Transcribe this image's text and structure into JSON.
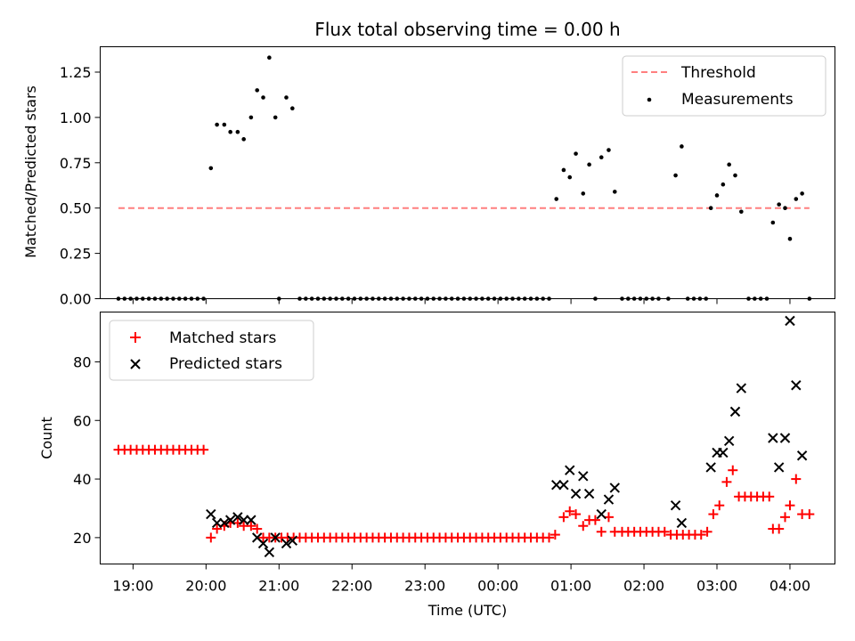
{
  "chart_data": [
    {
      "type": "scatter",
      "title": "Flux total observing time = 0.00 h",
      "xlabel": "",
      "ylabel": "Matched/Predicted stars",
      "ylim": [
        0.0,
        1.39
      ],
      "yticks": [
        0.0,
        0.25,
        0.5,
        0.75,
        1.0,
        1.25
      ],
      "ytick_labels": [
        "0.00",
        "0.25",
        "0.50",
        "0.75",
        "1.00",
        "1.25"
      ],
      "legend_position": "top-right",
      "series": [
        {
          "name": "Threshold",
          "kind": "line",
          "style": "dashed",
          "color": "#ff7f7f",
          "x": [
            "18:48",
            "04:16"
          ],
          "y": [
            0.5,
            0.5
          ]
        },
        {
          "name": "Measurements",
          "kind": "scatter",
          "color": "#000000",
          "points": [
            [
              "18:48",
              0
            ],
            [
              "18:53",
              0
            ],
            [
              "18:58",
              0
            ],
            [
              "19:03",
              0
            ],
            [
              "19:08",
              0
            ],
            [
              "19:13",
              0
            ],
            [
              "19:18",
              0
            ],
            [
              "19:23",
              0
            ],
            [
              "19:28",
              0
            ],
            [
              "19:33",
              0
            ],
            [
              "19:38",
              0
            ],
            [
              "19:43",
              0
            ],
            [
              "19:48",
              0
            ],
            [
              "19:53",
              0
            ],
            [
              "19:58",
              0
            ],
            [
              "20:04",
              0.72
            ],
            [
              "20:09",
              0.96
            ],
            [
              "20:15",
              0.96
            ],
            [
              "20:20",
              0.92
            ],
            [
              "20:26",
              0.92
            ],
            [
              "20:31",
              0.88
            ],
            [
              "20:37",
              1.0
            ],
            [
              "20:42",
              1.15
            ],
            [
              "20:47",
              1.11
            ],
            [
              "20:52",
              1.33
            ],
            [
              "20:57",
              1.0
            ],
            [
              "21:00",
              0
            ],
            [
              "21:06",
              1.11
            ],
            [
              "21:11",
              1.05
            ],
            [
              "21:17",
              0
            ],
            [
              "21:22",
              0
            ],
            [
              "21:27",
              0
            ],
            [
              "21:32",
              0
            ],
            [
              "21:37",
              0
            ],
            [
              "21:42",
              0
            ],
            [
              "21:47",
              0
            ],
            [
              "21:52",
              0
            ],
            [
              "21:57",
              0
            ],
            [
              "22:02",
              0
            ],
            [
              "22:07",
              0
            ],
            [
              "22:12",
              0
            ],
            [
              "22:17",
              0
            ],
            [
              "22:22",
              0
            ],
            [
              "22:27",
              0
            ],
            [
              "22:32",
              0
            ],
            [
              "22:37",
              0
            ],
            [
              "22:42",
              0
            ],
            [
              "22:47",
              0
            ],
            [
              "22:52",
              0
            ],
            [
              "22:57",
              0
            ],
            [
              "23:02",
              0
            ],
            [
              "23:07",
              0
            ],
            [
              "23:12",
              0
            ],
            [
              "23:17",
              0
            ],
            [
              "23:22",
              0
            ],
            [
              "23:27",
              0
            ],
            [
              "23:32",
              0
            ],
            [
              "23:37",
              0
            ],
            [
              "23:42",
              0
            ],
            [
              "23:47",
              0
            ],
            [
              "23:52",
              0
            ],
            [
              "23:57",
              0
            ],
            [
              "00:02",
              0
            ],
            [
              "00:07",
              0
            ],
            [
              "00:12",
              0
            ],
            [
              "00:17",
              0
            ],
            [
              "00:22",
              0
            ],
            [
              "00:27",
              0
            ],
            [
              "00:32",
              0
            ],
            [
              "00:37",
              0
            ],
            [
              "00:42",
              0
            ],
            [
              "00:48",
              0.55
            ],
            [
              "00:54",
              0.71
            ],
            [
              "00:59",
              0.67
            ],
            [
              "01:04",
              0.8
            ],
            [
              "01:10",
              0.58
            ],
            [
              "01:15",
              0.74
            ],
            [
              "01:25",
              0.78
            ],
            [
              "01:31",
              0.82
            ],
            [
              "01:36",
              0.59
            ],
            [
              "01:20",
              0
            ],
            [
              "01:42",
              0
            ],
            [
              "01:47",
              0
            ],
            [
              "01:52",
              0
            ],
            [
              "01:57",
              0
            ],
            [
              "02:02",
              0
            ],
            [
              "02:07",
              0
            ],
            [
              "02:12",
              0
            ],
            [
              "02:20",
              0
            ],
            [
              "02:26",
              0.68
            ],
            [
              "02:31",
              0.84
            ],
            [
              "02:36",
              0
            ],
            [
              "02:41",
              0
            ],
            [
              "02:46",
              0
            ],
            [
              "02:51",
              0
            ],
            [
              "02:55",
              0.5
            ],
            [
              "03:00",
              0.57
            ],
            [
              "03:05",
              0.63
            ],
            [
              "03:10",
              0.74
            ],
            [
              "03:15",
              0.68
            ],
            [
              "03:20",
              0.48
            ],
            [
              "03:26",
              0
            ],
            [
              "03:31",
              0
            ],
            [
              "03:36",
              0
            ],
            [
              "03:41",
              0
            ],
            [
              "03:46",
              0.42
            ],
            [
              "03:51",
              0.52
            ],
            [
              "03:56",
              0.5
            ],
            [
              "04:00",
              0.33
            ],
            [
              "04:05",
              0.55
            ],
            [
              "04:10",
              0.58
            ],
            [
              "04:16",
              0
            ]
          ]
        }
      ]
    },
    {
      "type": "scatter",
      "title": "",
      "xlabel": "Time (UTC)",
      "ylabel": "Count",
      "ylim": [
        11,
        97
      ],
      "yticks": [
        20,
        40,
        60,
        80
      ],
      "ytick_labels": [
        "20",
        "40",
        "60",
        "80"
      ],
      "xtick_labels": [
        "19:00",
        "20:00",
        "21:00",
        "22:00",
        "23:00",
        "00:00",
        "01:00",
        "02:00",
        "03:00",
        "04:00"
      ],
      "xlim": [
        "18:33",
        "04:37"
      ],
      "legend_position": "top-left",
      "series": [
        {
          "name": "Matched stars",
          "marker": "+",
          "color": "#ff0000",
          "points": [
            [
              "18:48",
              50
            ],
            [
              "18:53",
              50
            ],
            [
              "18:58",
              50
            ],
            [
              "19:03",
              50
            ],
            [
              "19:08",
              50
            ],
            [
              "19:13",
              50
            ],
            [
              "19:18",
              50
            ],
            [
              "19:23",
              50
            ],
            [
              "19:28",
              50
            ],
            [
              "19:33",
              50
            ],
            [
              "19:38",
              50
            ],
            [
              "19:43",
              50
            ],
            [
              "19:48",
              50
            ],
            [
              "19:53",
              50
            ],
            [
              "19:58",
              50
            ],
            [
              "20:04",
              20
            ],
            [
              "20:09",
              23
            ],
            [
              "20:15",
              24
            ],
            [
              "20:20",
              25
            ],
            [
              "20:26",
              25
            ],
            [
              "20:31",
              24
            ],
            [
              "20:37",
              24
            ],
            [
              "20:42",
              23
            ],
            [
              "20:47",
              20
            ],
            [
              "20:52",
              20
            ],
            [
              "20:57",
              20
            ],
            [
              "21:02",
              20
            ],
            [
              "21:07",
              20
            ],
            [
              "21:12",
              20
            ],
            [
              "21:17",
              20
            ],
            [
              "21:22",
              20
            ],
            [
              "21:27",
              20
            ],
            [
              "21:32",
              20
            ],
            [
              "21:37",
              20
            ],
            [
              "21:42",
              20
            ],
            [
              "21:47",
              20
            ],
            [
              "21:52",
              20
            ],
            [
              "21:57",
              20
            ],
            [
              "22:02",
              20
            ],
            [
              "22:07",
              20
            ],
            [
              "22:12",
              20
            ],
            [
              "22:17",
              20
            ],
            [
              "22:22",
              20
            ],
            [
              "22:27",
              20
            ],
            [
              "22:32",
              20
            ],
            [
              "22:37",
              20
            ],
            [
              "22:42",
              20
            ],
            [
              "22:47",
              20
            ],
            [
              "22:52",
              20
            ],
            [
              "22:57",
              20
            ],
            [
              "23:02",
              20
            ],
            [
              "23:07",
              20
            ],
            [
              "23:12",
              20
            ],
            [
              "23:17",
              20
            ],
            [
              "23:22",
              20
            ],
            [
              "23:27",
              20
            ],
            [
              "23:32",
              20
            ],
            [
              "23:37",
              20
            ],
            [
              "23:42",
              20
            ],
            [
              "23:47",
              20
            ],
            [
              "23:52",
              20
            ],
            [
              "23:57",
              20
            ],
            [
              "00:02",
              20
            ],
            [
              "00:07",
              20
            ],
            [
              "00:12",
              20
            ],
            [
              "00:17",
              20
            ],
            [
              "00:22",
              20
            ],
            [
              "00:27",
              20
            ],
            [
              "00:32",
              20
            ],
            [
              "00:37",
              20
            ],
            [
              "00:42",
              20
            ],
            [
              "00:47",
              21
            ],
            [
              "00:54",
              27
            ],
            [
              "00:59",
              29
            ],
            [
              "01:04",
              28
            ],
            [
              "01:10",
              24
            ],
            [
              "01:15",
              26
            ],
            [
              "01:20",
              26
            ],
            [
              "01:25",
              22
            ],
            [
              "01:31",
              27
            ],
            [
              "01:36",
              22
            ],
            [
              "01:42",
              22
            ],
            [
              "01:47",
              22
            ],
            [
              "01:52",
              22
            ],
            [
              "01:57",
              22
            ],
            [
              "02:02",
              22
            ],
            [
              "02:07",
              22
            ],
            [
              "02:12",
              22
            ],
            [
              "02:17",
              22
            ],
            [
              "02:22",
              21
            ],
            [
              "02:27",
              21
            ],
            [
              "02:32",
              21
            ],
            [
              "02:37",
              21
            ],
            [
              "02:42",
              21
            ],
            [
              "02:47",
              21
            ],
            [
              "02:52",
              22
            ],
            [
              "02:57",
              28
            ],
            [
              "03:02",
              31
            ],
            [
              "03:08",
              39
            ],
            [
              "03:13",
              43
            ],
            [
              "03:18",
              34
            ],
            [
              "03:23",
              34
            ],
            [
              "03:28",
              34
            ],
            [
              "03:33",
              34
            ],
            [
              "03:38",
              34
            ],
            [
              "03:43",
              34
            ],
            [
              "03:46",
              23
            ],
            [
              "03:51",
              23
            ],
            [
              "03:56",
              27
            ],
            [
              "04:00",
              31
            ],
            [
              "04:05",
              40
            ],
            [
              "04:10",
              28
            ],
            [
              "04:16",
              28
            ]
          ]
        },
        {
          "name": "Predicted stars",
          "marker": "x",
          "color": "#000000",
          "points": [
            [
              "20:04",
              28
            ],
            [
              "20:09",
              25
            ],
            [
              "20:15",
              25
            ],
            [
              "20:20",
              26
            ],
            [
              "20:26",
              27
            ],
            [
              "20:31",
              26
            ],
            [
              "20:37",
              26
            ],
            [
              "20:42",
              20
            ],
            [
              "20:47",
              18
            ],
            [
              "20:52",
              15
            ],
            [
              "20:57",
              20
            ],
            [
              "21:06",
              18
            ],
            [
              "21:11",
              19
            ],
            [
              "00:48",
              38
            ],
            [
              "00:54",
              38
            ],
            [
              "00:59",
              43
            ],
            [
              "01:04",
              35
            ],
            [
              "01:10",
              41
            ],
            [
              "01:15",
              35
            ],
            [
              "01:25",
              28
            ],
            [
              "01:31",
              33
            ],
            [
              "01:36",
              37
            ],
            [
              "02:26",
              31
            ],
            [
              "02:31",
              25
            ],
            [
              "02:55",
              44
            ],
            [
              "03:00",
              49
            ],
            [
              "03:05",
              49
            ],
            [
              "03:10",
              53
            ],
            [
              "03:15",
              63
            ],
            [
              "03:20",
              71
            ],
            [
              "03:46",
              54
            ],
            [
              "03:51",
              44
            ],
            [
              "03:56",
              54
            ],
            [
              "04:00",
              94
            ],
            [
              "04:05",
              72
            ],
            [
              "04:10",
              48
            ]
          ]
        }
      ]
    }
  ]
}
